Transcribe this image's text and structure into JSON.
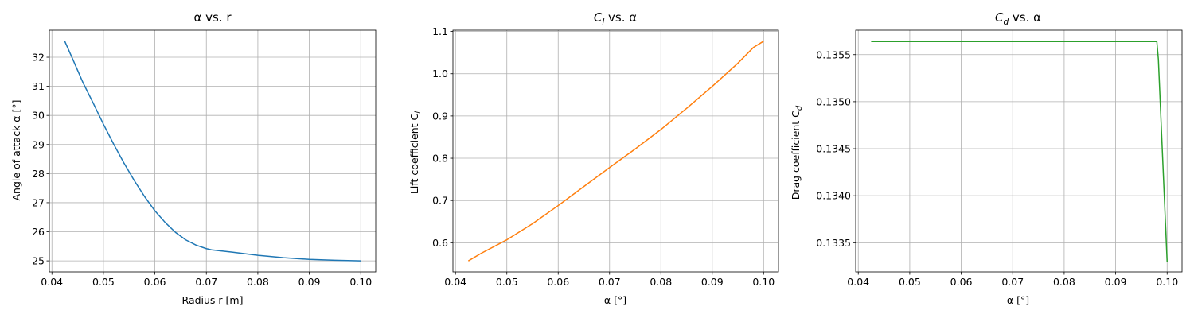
{
  "chart_data": [
    {
      "type": "line",
      "title": "α vs. r",
      "xlabel": "Radius r [m]",
      "ylabel": "Angle of attack α [°]",
      "xlim": [
        0.0395,
        0.1029
      ],
      "ylim": [
        24.62,
        32.93
      ],
      "xticks": [
        0.04,
        0.05,
        0.06,
        0.07,
        0.08,
        0.09,
        0.1
      ],
      "xtick_labels": [
        "0.04",
        "0.05",
        "0.06",
        "0.07",
        "0.08",
        "0.09",
        "0.10"
      ],
      "yticks": [
        25,
        26,
        27,
        28,
        29,
        30,
        31,
        32
      ],
      "ytick_labels": [
        "25",
        "26",
        "27",
        "28",
        "29",
        "30",
        "31",
        "32"
      ],
      "grid": true,
      "color": "#1f77b4",
      "x": [
        0.0425,
        0.044,
        0.046,
        0.048,
        0.05,
        0.052,
        0.054,
        0.056,
        0.058,
        0.06,
        0.062,
        0.064,
        0.066,
        0.068,
        0.07,
        0.071,
        0.075,
        0.08,
        0.085,
        0.09,
        0.095,
        0.1
      ],
      "y": [
        32.55,
        31.95,
        31.14,
        30.43,
        29.7,
        29.01,
        28.36,
        27.76,
        27.21,
        26.72,
        26.32,
        25.98,
        25.72,
        25.54,
        25.42,
        25.38,
        25.3,
        25.19,
        25.11,
        25.05,
        25.02,
        25.0
      ]
    },
    {
      "type": "line",
      "title": "C_l vs. α",
      "title_parts": [
        "C",
        "l",
        " vs. α"
      ],
      "xlabel": "α [°]",
      "ylabel": "Lift coefficient C_l",
      "ylabel_parts": [
        "Lift coefficient C",
        "l"
      ],
      "xlim": [
        0.0395,
        0.1029
      ],
      "ylim": [
        0.531,
        1.103
      ],
      "xticks": [
        0.04,
        0.05,
        0.06,
        0.07,
        0.08,
        0.09,
        0.1
      ],
      "xtick_labels": [
        "0.04",
        "0.05",
        "0.06",
        "0.07",
        "0.08",
        "0.09",
        "0.10"
      ],
      "yticks": [
        0.6,
        0.7,
        0.8,
        0.9,
        1.0,
        1.1
      ],
      "ytick_labels": [
        "0.6",
        "0.7",
        "0.8",
        "0.9",
        "1.0",
        "1.1"
      ],
      "grid": true,
      "color": "#ff7f0e",
      "x": [
        0.0425,
        0.045,
        0.05,
        0.055,
        0.06,
        0.065,
        0.07,
        0.075,
        0.08,
        0.085,
        0.09,
        0.095,
        0.098,
        0.1
      ],
      "y": [
        0.557,
        0.575,
        0.607,
        0.645,
        0.688,
        0.733,
        0.778,
        0.822,
        0.868,
        0.918,
        0.97,
        1.025,
        1.062,
        1.077
      ]
    },
    {
      "type": "line",
      "title": "C_d vs. α",
      "title_parts": [
        "C",
        "d",
        " vs. α"
      ],
      "xlabel": "α [°]",
      "ylabel": "Drag coefficient C_d",
      "ylabel_parts": [
        "Drag coefficient C",
        "d"
      ],
      "xlim": [
        0.0395,
        0.1029
      ],
      "ylim": [
        0.13319,
        0.13576
      ],
      "xticks": [
        0.04,
        0.05,
        0.06,
        0.07,
        0.08,
        0.09,
        0.1
      ],
      "xtick_labels": [
        "0.04",
        "0.05",
        "0.06",
        "0.07",
        "0.08",
        "0.09",
        "0.10"
      ],
      "yticks": [
        0.1335,
        0.134,
        0.1345,
        0.135,
        0.1355
      ],
      "ytick_labels": [
        "0.1335",
        "0.1340",
        "0.1345",
        "0.1350",
        "0.1355"
      ],
      "grid": true,
      "color": "#2ca02c",
      "x": [
        0.0425,
        0.05,
        0.06,
        0.07,
        0.08,
        0.09,
        0.098,
        0.0983,
        0.1
      ],
      "y": [
        0.13564,
        0.13564,
        0.13564,
        0.13564,
        0.13564,
        0.13564,
        0.13564,
        0.13545,
        0.1333
      ]
    }
  ]
}
